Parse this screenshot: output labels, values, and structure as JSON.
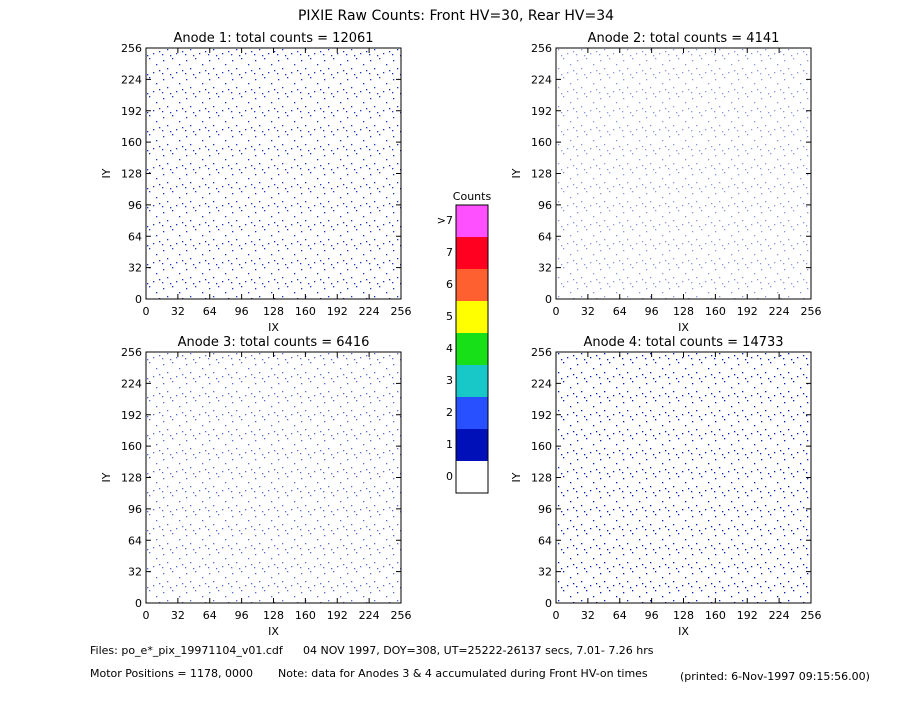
{
  "title": "PIXIE Raw Counts:  Front HV=30, Rear HV=34",
  "chart_data": [
    {
      "type": "heatmap",
      "title": "Anode 1: total counts = 12061",
      "xlabel": "IX",
      "ylabel": "IY",
      "xlim": [
        0,
        256
      ],
      "ylim": [
        0,
        256
      ],
      "xticks": [
        0,
        32,
        64,
        96,
        128,
        160,
        192,
        224,
        256
      ],
      "yticks": [
        0,
        32,
        64,
        96,
        128,
        160,
        192,
        224,
        256
      ]
    },
    {
      "type": "heatmap",
      "title": "Anode 2: total counts = 4141",
      "xlabel": "IX",
      "ylabel": "IY",
      "xlim": [
        0,
        256
      ],
      "ylim": [
        0,
        256
      ],
      "xticks": [
        0,
        32,
        64,
        96,
        128,
        160,
        192,
        224,
        256
      ],
      "yticks": [
        0,
        32,
        64,
        96,
        128,
        160,
        192,
        224,
        256
      ]
    },
    {
      "type": "heatmap",
      "title": "Anode 3: total counts = 6416",
      "xlabel": "IX",
      "ylabel": "IY",
      "xlim": [
        0,
        256
      ],
      "ylim": [
        0,
        256
      ],
      "xticks": [
        0,
        32,
        64,
        96,
        128,
        160,
        192,
        224,
        256
      ],
      "yticks": [
        0,
        32,
        64,
        96,
        128,
        160,
        192,
        224,
        256
      ]
    },
    {
      "type": "heatmap",
      "title": "Anode 4: total counts = 14733",
      "xlabel": "IX",
      "ylabel": "IY",
      "xlim": [
        0,
        256
      ],
      "ylim": [
        0,
        256
      ],
      "xticks": [
        0,
        32,
        64,
        96,
        128,
        160,
        192,
        224,
        256
      ],
      "yticks": [
        0,
        32,
        64,
        96,
        128,
        160,
        192,
        224,
        256
      ]
    }
  ],
  "colorbar": {
    "title": "Counts",
    "labels": [
      0,
      1,
      2,
      3,
      4,
      5,
      6,
      7,
      ">7"
    ],
    "colors": [
      "#ffffff",
      "#0010b8",
      "#2850ff",
      "#18c8c8",
      "#18e018",
      "#ffff00",
      "#ff6030",
      "#ff0020",
      "#ff50ff"
    ]
  },
  "footer": {
    "files": "Files: po_e*_pix_19971104_v01.cdf",
    "time": "04 NOV 1997, DOY=308, UT=25222-26137 secs,  7.01- 7.26 hrs",
    "motor": "Motor Positions = 1178, 0000",
    "note": "Note: data for Anodes 3 & 4 accumulated during Front HV-on times",
    "printed": "(printed:  6-Nov-1997 09:15:56.00)"
  }
}
